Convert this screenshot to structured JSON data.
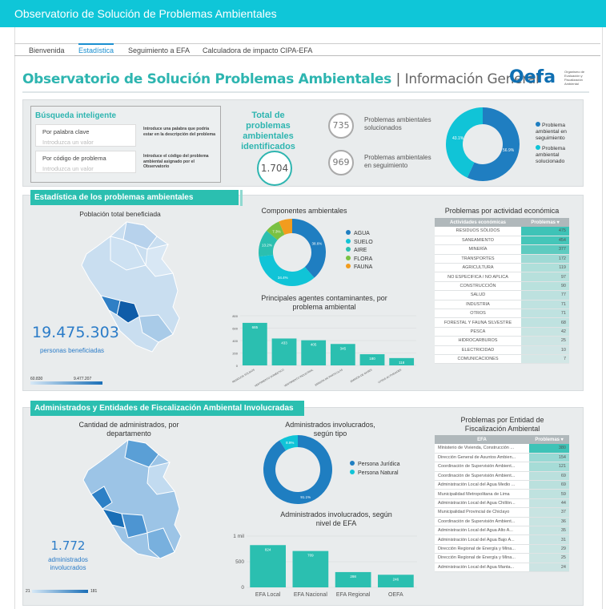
{
  "app_title": "Observatorio de Solución de Problemas Ambientales",
  "tabs": [
    {
      "label": "Bienvenida"
    },
    {
      "label": "Estadística"
    },
    {
      "label": "Seguimiento a EFA"
    },
    {
      "label": "Calculadora de impacto CIPA-EFA"
    }
  ],
  "page": {
    "title": "Observatorio de Solución Problemas Ambientales",
    "separator": "|",
    "subtitle": "Información General",
    "logo": "Oefa",
    "logo_note": "Organismo de Evaluación y Fiscalización Ambiental"
  },
  "search": {
    "title": "Búsqueda inteligente",
    "keyword_label": "Por palabra clave",
    "keyword_placeholder": "Introduzca un valor",
    "keyword_help": "Introduce una palabra que podría estar en la descripción del problema",
    "code_label": "Por código de problema",
    "code_placeholder": "Introduzca un valor",
    "code_help": "Introduce el código del problema ambiental asignado por el Observatorio"
  },
  "totals": {
    "title": "Total de problemas ambientales identificados",
    "total": "1.704",
    "solved_value": "735",
    "solved_label_1": "Problemas ambientales",
    "solved_label_2": "solucionados",
    "followup_value": "969",
    "followup_label_1": "Problemas ambientales",
    "followup_label_2": "en seguimiento",
    "donut_label_a": "43.1%",
    "donut_label_b": "56.9%",
    "legend_followup": "Problema ambiental en seguimiento",
    "legend_solved": "Problema ambiental solucionado"
  },
  "section1": {
    "title": "Estadística de los problemas ambientales",
    "pop_title": "Población total beneficiada",
    "pop_value": "19.475.303",
    "pop_label": "personas beneficiadas",
    "legend_min": "60.830",
    "legend_max": "9.477.207",
    "components_title": "Componentes ambientales",
    "agents_title": "Principales agentes contaminantes, por problema ambiental",
    "activity_title": "Problemas por actividad económica"
  },
  "section2": {
    "title": "Administrados y Entidades de Fiscalización Ambiental Involucradas",
    "map_title": "Cantidad de administrados, por departamento",
    "admin_value": "1.772",
    "admin_label": "administrados involucrados",
    "legend_min": "21",
    "legend_max": "181",
    "type_title": "Administrados involucrados, según tipo",
    "level_title": "Administrados involucrados, según nivel de EFA",
    "efa_title": "Problemas por Entidad de Fiscalización Ambiental"
  },
  "colors": {
    "teal": "#2bbfb0",
    "blue": "#1f7ec1",
    "cyan": "#10c4d7",
    "topbar": "#0fc6d8"
  },
  "chart_data": [
    {
      "type": "pie",
      "title": "",
      "categories": [
        "Problema ambiental en seguimiento",
        "Problema ambiental solucionado"
      ],
      "values": [
        56.9,
        43.1
      ],
      "labels": [
        "56.9%",
        "43.1%"
      ],
      "colors": [
        "#1f7ec1",
        "#10c4d7"
      ]
    },
    {
      "type": "pie",
      "title": "Componentes ambientales",
      "categories": [
        "AGUA",
        "SUELO",
        "AIRE",
        "FLORA",
        "FAUNA"
      ],
      "values": [
        38.6,
        34.4,
        13.2,
        7.3,
        6.5
      ],
      "labels": [
        "38.6%",
        "34.4%",
        "13.2%",
        "7.3%",
        ""
      ],
      "colors": [
        "#1f7ec1",
        "#10c4d7",
        "#2bbfb0",
        "#7ac142",
        "#f29c1e"
      ]
    },
    {
      "type": "bar",
      "title": "Principales agentes contaminantes, por problema ambiental",
      "categories": [
        "RESIDUOS SÓLIDOS",
        "VERTIMIENTO DOMÉSTICO",
        "VERTIMIENTO INDUSTRIAL",
        "EMISIÓN DE PARTICULAS",
        "EMISIÓN DE GASES",
        "OTRAS ACTIVIDADES"
      ],
      "values": [
        685,
        433,
        405,
        345,
        180,
        118
      ],
      "ylim": [
        0,
        800
      ],
      "yticks": [
        0,
        200,
        400,
        600,
        800
      ],
      "color": "#2bbfb0"
    },
    {
      "type": "table",
      "title": "Problemas por actividad económica",
      "columns": [
        "Actividades económicas",
        "Problemas ▾"
      ],
      "rows": [
        [
          "RESIDUOS SÓLIDOS",
          "475"
        ],
        [
          "SANEAMIENTO",
          "454"
        ],
        [
          "MINERÍA",
          "377"
        ],
        [
          "TRANSPORTES",
          "172"
        ],
        [
          "AGRICULTURA",
          "119"
        ],
        [
          "NO ESPECIFICA / NO APLICA",
          "97"
        ],
        [
          "CONSTRUCCIÓN",
          "90"
        ],
        [
          "SALUD",
          "77"
        ],
        [
          "INDUSTRIA",
          "71"
        ],
        [
          "OTROS",
          "71"
        ],
        [
          "FORESTAL Y FAUNA SILVESTRE",
          "68"
        ],
        [
          "PESCA",
          "42"
        ],
        [
          "HIDROCARBUROS",
          "25"
        ],
        [
          "ELECTRICIDAD",
          "10"
        ],
        [
          "COMUNICACIONES",
          "7"
        ]
      ]
    },
    {
      "type": "pie",
      "title": "Administrados involucrados, según tipo",
      "categories": [
        "Persona Jurídica",
        "Persona Natural"
      ],
      "values": [
        91.1,
        8.9
      ],
      "labels": [
        "91.1%",
        "8.9%"
      ],
      "colors": [
        "#1f7ec1",
        "#10c4d7"
      ]
    },
    {
      "type": "bar",
      "title": "Administrados involucrados, según nivel de EFA",
      "categories": [
        "EFA Local",
        "EFA Nacional",
        "EFA Regional",
        "OEFA"
      ],
      "values": [
        824,
        709,
        298,
        246
      ],
      "ylim": [
        0,
        1000
      ],
      "yticks": [
        0,
        500,
        1000
      ],
      "ytick_labels": [
        "0",
        "500",
        "1 mil"
      ],
      "color": "#2bbfb0"
    },
    {
      "type": "table",
      "title": "Problemas por Entidad de Fiscalización Ambiental",
      "columns": [
        "EFA",
        "Problemas ▾"
      ],
      "rows": [
        [
          "Ministerio de Vivienda, Construcción ...",
          "380"
        ],
        [
          "Dirección General de Asuntos Ambien...",
          "154"
        ],
        [
          "Coordinación de Supervisión Ambient...",
          "121"
        ],
        [
          "Coordinación de Supervisión Ambient...",
          "69"
        ],
        [
          "Administración Local del Agua Medio ...",
          "69"
        ],
        [
          "Municipalidad Metropolitana de Lima",
          "59"
        ],
        [
          "Administración Local del Agua Chillón...",
          "44"
        ],
        [
          "Municipalidad Provincial de Chiclayo",
          "37"
        ],
        [
          "Coordinación de Supervisión Ambient...",
          "36"
        ],
        [
          "Administración Local del Agua Alto A...",
          "35"
        ],
        [
          "Administración Local del Agua Bajo A...",
          "31"
        ],
        [
          "Dirección Regional de Energía y Mina...",
          "29"
        ],
        [
          "Dirección Regional de Energía y Mina...",
          "25"
        ],
        [
          "Administración Local del Agua Manta...",
          "24"
        ]
      ]
    }
  ]
}
